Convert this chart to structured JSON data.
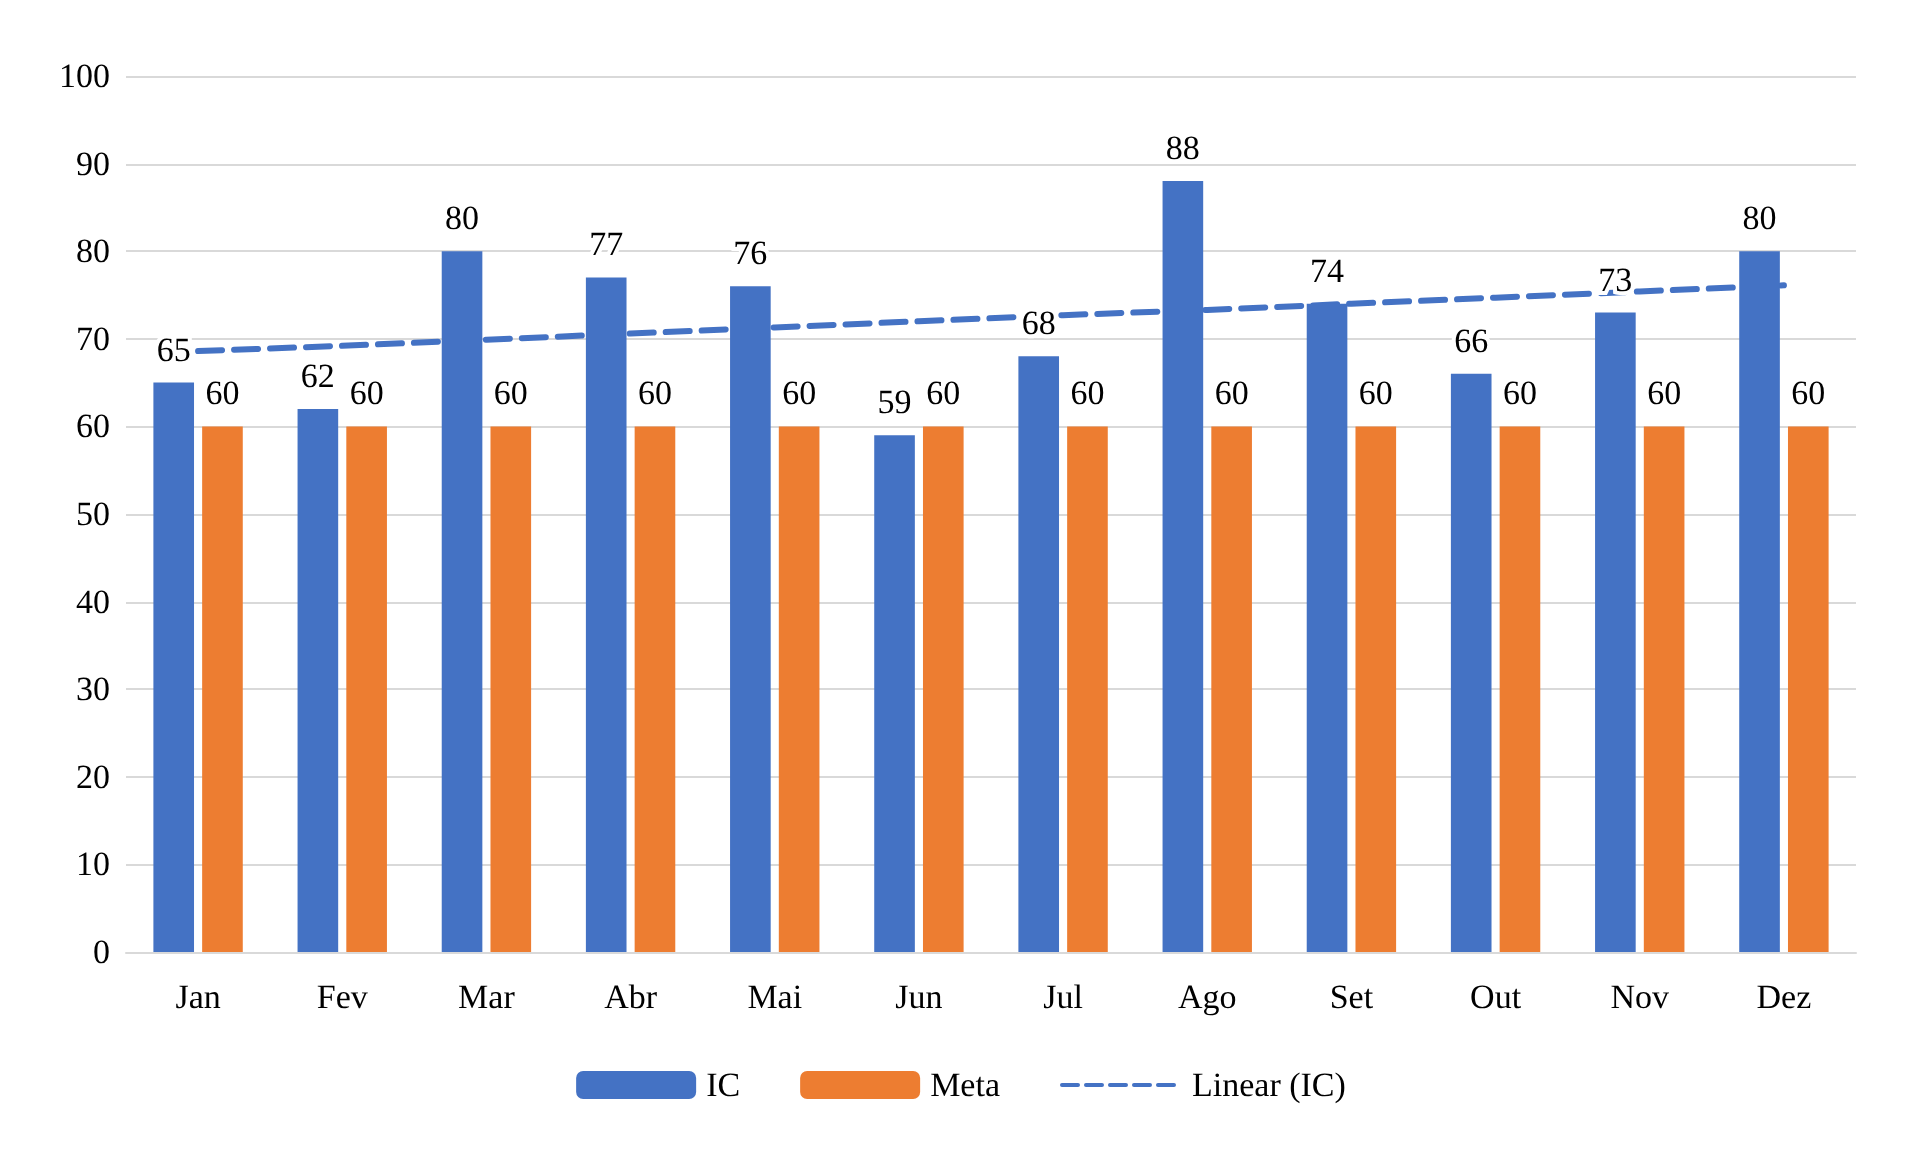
{
  "chart_data": {
    "type": "bar",
    "categories": [
      "Jan",
      "Fev",
      "Mar",
      "Abr",
      "Mai",
      "Jun",
      "Jul",
      "Ago",
      "Set",
      "Out",
      "Nov",
      "Dez"
    ],
    "series": [
      {
        "name": "IC",
        "color": "#4472c4",
        "values": [
          65,
          62,
          80,
          77,
          76,
          59,
          68,
          88,
          74,
          66,
          73,
          80
        ],
        "value_labels": [
          "65",
          "62",
          "80",
          "77",
          "76",
          "59",
          "68",
          "88",
          "74",
          "66",
          "73",
          "80"
        ]
      },
      {
        "name": "Meta",
        "color": "#ed7d31",
        "values": [
          60,
          60,
          60,
          60,
          60,
          60,
          60,
          60,
          60,
          60,
          60,
          60
        ],
        "value_labels": [
          "60",
          "60",
          "60",
          "60",
          "60",
          "60",
          "60",
          "60",
          "60",
          "60",
          "60",
          "60"
        ]
      },
      {
        "name": "Linear (IC)",
        "type": "line",
        "line_style": "dashed",
        "marker": "none",
        "color": "#4472c4",
        "values": [
          68.6,
          69.2,
          69.9,
          70.6,
          71.3,
          72.0,
          72.7,
          73.3,
          74.0,
          74.7,
          75.4,
          76.1
        ]
      }
    ],
    "ylim": [
      0,
      100
    ],
    "yticks": [
      0,
      10,
      20,
      30,
      40,
      50,
      60,
      70,
      80,
      90,
      100
    ],
    "grid": "y",
    "legend": "bottom"
  }
}
